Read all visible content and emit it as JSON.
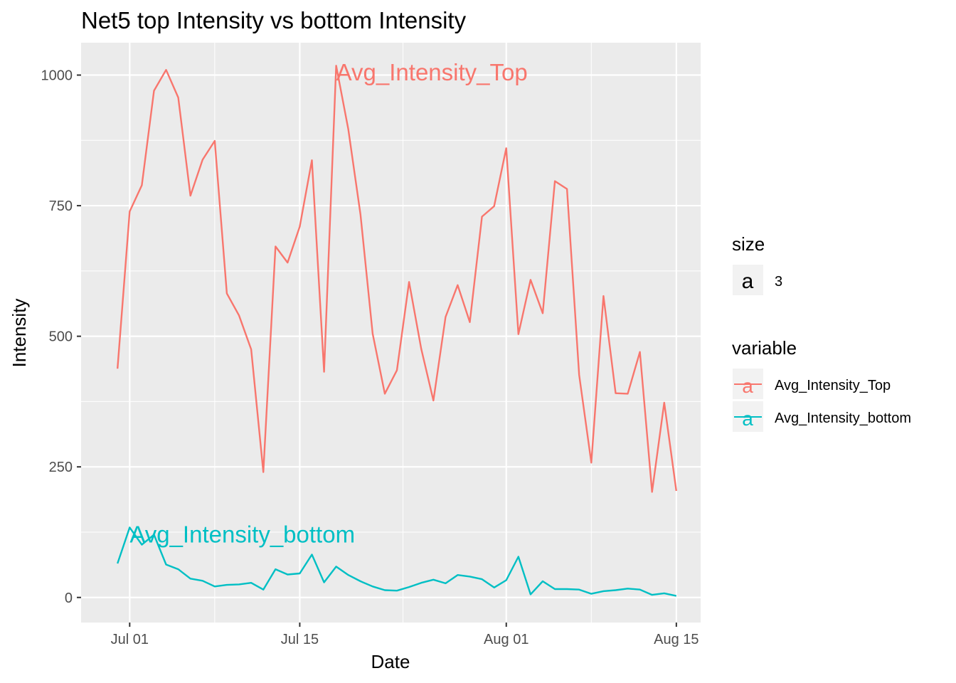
{
  "chart_data": {
    "type": "line",
    "title": "Net5 top Intensity vs bottom Intensity",
    "xlabel": "Date",
    "ylabel": "Intensity",
    "x_range": [
      "2019-06-27",
      "2019-08-17"
    ],
    "ylim": [
      -48,
      1062
    ],
    "x_ticks": [
      {
        "date": "2019-07-01",
        "label": "Jul 01"
      },
      {
        "date": "2019-07-15",
        "label": "Jul 15"
      },
      {
        "date": "2019-08-01",
        "label": "Aug 01"
      },
      {
        "date": "2019-08-15",
        "label": "Aug 15"
      }
    ],
    "y_ticks": [
      0,
      250,
      500,
      750,
      1000
    ],
    "x": [
      "2019-06-30",
      "2019-07-01",
      "2019-07-02",
      "2019-07-03",
      "2019-07-04",
      "2019-07-05",
      "2019-07-06",
      "2019-07-07",
      "2019-07-08",
      "2019-07-09",
      "2019-07-10",
      "2019-07-11",
      "2019-07-12",
      "2019-07-13",
      "2019-07-14",
      "2019-07-15",
      "2019-07-16",
      "2019-07-17",
      "2019-07-18",
      "2019-07-19",
      "2019-07-20",
      "2019-07-21",
      "2019-07-22",
      "2019-07-23",
      "2019-07-24",
      "2019-07-25",
      "2019-07-26",
      "2019-07-27",
      "2019-07-28",
      "2019-07-29",
      "2019-07-30",
      "2019-07-31",
      "2019-08-01",
      "2019-08-02",
      "2019-08-03",
      "2019-08-04",
      "2019-08-05",
      "2019-08-06",
      "2019-08-07",
      "2019-08-08",
      "2019-08-09",
      "2019-08-10",
      "2019-08-11",
      "2019-08-12",
      "2019-08-13",
      "2019-08-14",
      "2019-08-15"
    ],
    "series": [
      {
        "name": "Avg_Intensity_Top",
        "color": "#F8766D",
        "values": [
          438,
          739,
          789,
          970,
          1010,
          957,
          769,
          838,
          874,
          582,
          540,
          475,
          240,
          672,
          641,
          710,
          837,
          432,
          1018,
          896,
          733,
          505,
          390,
          435,
          604,
          476,
          377,
          537,
          598,
          527,
          729,
          749,
          860,
          504,
          608,
          544,
          797,
          782,
          426,
          258,
          577,
          391,
          390,
          470,
          202,
          373,
          204
        ]
      },
      {
        "name": "Avg_Intensity_bottom",
        "color": "#00BFC4",
        "values": [
          65,
          134,
          101,
          120,
          63,
          54,
          36,
          32,
          21,
          24,
          25,
          28,
          15,
          54,
          44,
          46,
          82,
          29,
          59,
          43,
          31,
          21,
          14,
          13,
          20,
          28,
          34,
          27,
          43,
          40,
          35,
          19,
          33,
          78,
          6,
          31,
          16,
          16,
          15,
          7,
          12,
          14,
          17,
          15,
          5,
          8,
          3
        ]
      }
    ],
    "annotations": [
      {
        "text": "Avg_Intensity_Top",
        "x": "2019-07-18",
        "y": 1005,
        "color": "#F8766D"
      },
      {
        "text": "Avg_Intensity_bottom",
        "x": "2019-07-01",
        "y": 120,
        "color": "#00BFC4"
      }
    ],
    "grid": true,
    "background": "#EBEBEB",
    "legend_position": "right",
    "legend": {
      "size": {
        "title": "size",
        "key": "a",
        "label": "3"
      },
      "variable": {
        "title": "variable",
        "key": "a",
        "items": [
          "Avg_Intensity_Top",
          "Avg_Intensity_bottom"
        ]
      }
    }
  }
}
